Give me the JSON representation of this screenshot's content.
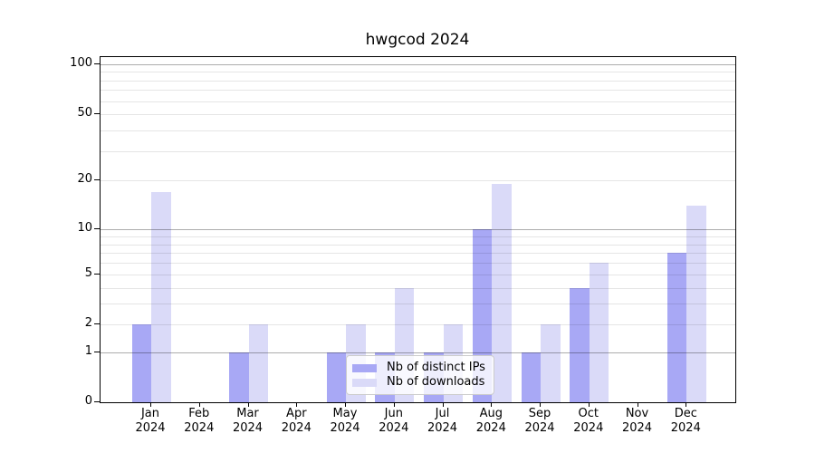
{
  "title": "hwgcod 2024",
  "chart_data": {
    "type": "bar",
    "title": "hwgcod 2024",
    "year": "2024",
    "months": [
      "Jan",
      "Feb",
      "Mar",
      "Apr",
      "May",
      "Jun",
      "Jul",
      "Aug",
      "Sep",
      "Oct",
      "Nov",
      "Dec"
    ],
    "categories": [
      "Jan 2024",
      "Feb 2024",
      "Mar 2024",
      "Apr 2024",
      "May 2024",
      "Jun 2024",
      "Jul 2024",
      "Aug 2024",
      "Sep 2024",
      "Oct 2024",
      "Nov 2024",
      "Dec 2024"
    ],
    "series": [
      {
        "name": "Nb of distinct IPs",
        "color": "#a8a8f5",
        "values": [
          2,
          0,
          1,
          0,
          1,
          1,
          1,
          10,
          1,
          4,
          0,
          7
        ]
      },
      {
        "name": "Nb of downloads",
        "color": "#dadaf8",
        "values": [
          17,
          0,
          2,
          0,
          2,
          4,
          2,
          19,
          2,
          6,
          0,
          14
        ]
      }
    ],
    "yscale": "log1p",
    "ylim": [
      0,
      110
    ],
    "y_ticks": [
      0,
      1,
      2,
      5,
      10,
      20,
      50,
      100
    ],
    "y_major_grid": [
      1,
      10,
      100
    ],
    "y_minor_grid": [
      3,
      4,
      6,
      7,
      8,
      9,
      30,
      40,
      60,
      70,
      80,
      90
    ],
    "xlabel": "",
    "ylabel": "",
    "grid": "both",
    "legend_position": "lower center"
  },
  "legend": {
    "items": [
      {
        "label": "Nb of distinct IPs",
        "swatch": "ips-swatch"
      },
      {
        "label": "Nb of downloads",
        "swatch": "downloads-swatch"
      }
    ]
  }
}
